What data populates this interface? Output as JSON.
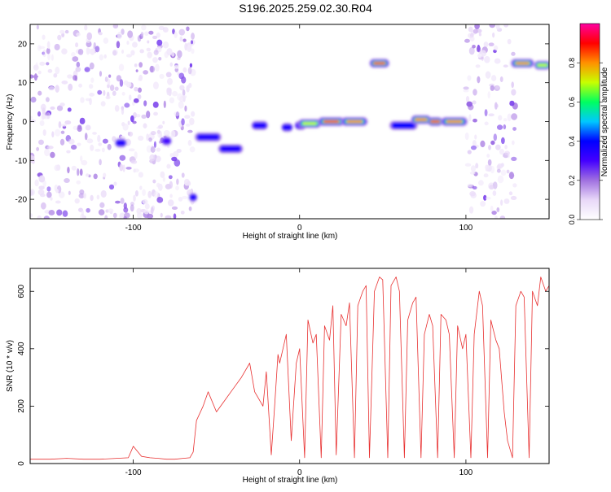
{
  "title": "S196.2025.259.02.30.R04",
  "chart_data": [
    {
      "type": "heatmap",
      "xlabel": "Height of straight line (km)",
      "ylabel": "Frequency (Hz)",
      "xlim": [
        -162,
        150
      ],
      "ylim": [
        -25,
        25
      ],
      "x_ticks": [
        -100,
        0,
        100
      ],
      "y_ticks": [
        -20,
        -10,
        0,
        10,
        20
      ],
      "colorbar": {
        "label": "Normalized spectral amplitude",
        "range": [
          0,
          1
        ],
        "ticks": [
          0.0,
          0.2,
          0.4,
          0.6,
          0.8
        ],
        "tick_labels": [
          "0.0",
          "0.2",
          "0.4",
          "0.6",
          "0.8"
        ],
        "colors": [
          "#ffffff",
          "#e8d8f8",
          "#a070e0",
          "#4400ff",
          "#0000ff",
          "#00c8ff",
          "#00ff60",
          "#c8ff00",
          "#ff9000",
          "#ff0000",
          "#ff00a0"
        ]
      },
      "features": [
        {
          "x": [
            -110,
            -105
          ],
          "y": -5.5,
          "amplitude": 0.35
        },
        {
          "x": [
            -82,
            -78
          ],
          "y": -5,
          "amplitude": 0.3
        },
        {
          "x": [
            -64,
            -64
          ],
          "y": -19.5,
          "amplitude": 0.35
        },
        {
          "x": [
            -62,
            -48
          ],
          "y": -4,
          "amplitude": 0.35
        },
        {
          "x": [
            -48,
            -35
          ],
          "y": -7,
          "amplitude": 0.35
        },
        {
          "x": [
            -28,
            -20
          ],
          "y": -1,
          "amplitude": 0.35
        },
        {
          "x": [
            -10,
            -5
          ],
          "y": -1.5,
          "amplitude": 0.35
        },
        {
          "x": [
            -2,
            3
          ],
          "y": -1,
          "amplitude": 0.3
        },
        {
          "x": [
            0,
            12
          ],
          "y": -0.5,
          "amplitude": 0.7
        },
        {
          "x": [
            12,
            26
          ],
          "y": 0,
          "amplitude": 0.85
        },
        {
          "x": [
            26,
            40
          ],
          "y": 0,
          "amplitude": 0.8
        },
        {
          "x": [
            43,
            53
          ],
          "y": 15,
          "amplitude": 0.85
        },
        {
          "x": [
            55,
            70
          ],
          "y": -1,
          "amplitude": 0.4
        },
        {
          "x": [
            68,
            78
          ],
          "y": 0.5,
          "amplitude": 0.8
        },
        {
          "x": [
            78,
            85
          ],
          "y": 0,
          "amplitude": 0.85
        },
        {
          "x": [
            86,
            100
          ],
          "y": 0,
          "amplitude": 0.8
        },
        {
          "x": [
            128,
            140
          ],
          "y": 15,
          "amplitude": 0.8
        },
        {
          "x": [
            142,
            150
          ],
          "y": 14.5,
          "amplitude": 0.7
        }
      ],
      "noise_regions": [
        {
          "x": [
            -162,
            -68
          ],
          "density": 0.5
        },
        {
          "x": [
            -70,
            -64
          ],
          "density": 0.6
        },
        {
          "x": [
            100,
            130
          ],
          "density": 0.5
        }
      ]
    },
    {
      "type": "line",
      "xlabel": "Height of straight line (km)",
      "ylabel": "SNR (10 * v/v)",
      "xlim": [
        -162,
        150
      ],
      "ylim": [
        0,
        680
      ],
      "x_ticks": [
        -100,
        0,
        100
      ],
      "y_ticks": [
        0,
        200,
        400,
        600
      ],
      "line_color": "#e83030",
      "x": [
        -162,
        -150,
        -140,
        -130,
        -120,
        -110,
        -103,
        -100,
        -95,
        -90,
        -85,
        -80,
        -75,
        -70,
        -66,
        -64,
        -62,
        -58,
        -55,
        -50,
        -45,
        -40,
        -35,
        -30,
        -27,
        -25,
        -22,
        -20,
        -17,
        -15,
        -13,
        -12,
        -8,
        -5,
        -2,
        0,
        3,
        5,
        8,
        10,
        13,
        15,
        18,
        20,
        22,
        25,
        28,
        30,
        33,
        35,
        38,
        40,
        42,
        45,
        48,
        50,
        53,
        55,
        58,
        60,
        63,
        65,
        68,
        70,
        73,
        75,
        78,
        80,
        83,
        85,
        88,
        90,
        93,
        95,
        98,
        100,
        103,
        105,
        108,
        110,
        113,
        115,
        118,
        120,
        123,
        125,
        128,
        130,
        133,
        135,
        138,
        140,
        143,
        145,
        148,
        150
      ],
      "y": [
        15,
        15,
        18,
        15,
        15,
        18,
        20,
        60,
        25,
        20,
        18,
        15,
        15,
        18,
        20,
        40,
        150,
        200,
        250,
        180,
        220,
        260,
        300,
        350,
        250,
        230,
        200,
        320,
        30,
        200,
        380,
        350,
        450,
        80,
        350,
        400,
        20,
        500,
        420,
        450,
        20,
        480,
        430,
        550,
        30,
        520,
        480,
        560,
        20,
        550,
        600,
        620,
        20,
        600,
        650,
        640,
        20,
        620,
        650,
        600,
        20,
        500,
        560,
        580,
        20,
        450,
        520,
        480,
        20,
        520,
        500,
        450,
        20,
        480,
        400,
        450,
        20,
        450,
        600,
        550,
        20,
        500,
        430,
        400,
        180,
        80,
        20,
        550,
        600,
        580,
        20,
        600,
        550,
        650,
        600,
        620
      ]
    }
  ]
}
